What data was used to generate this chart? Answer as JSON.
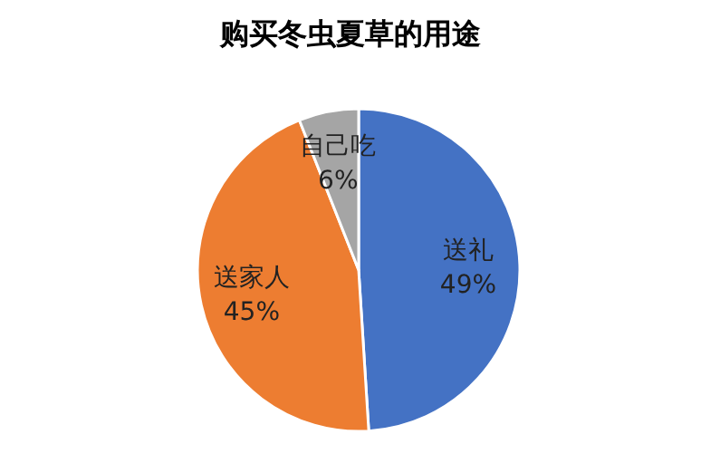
{
  "chart_data": {
    "type": "pie",
    "title": "购买冬虫夏草的用途",
    "categories": [
      "送礼",
      "送家人",
      "自己吃"
    ],
    "values": [
      49,
      45,
      6
    ],
    "colors": [
      "#4472c4",
      "#ed7d31",
      "#a5a5a5"
    ],
    "value_labels": [
      "49%",
      "45%",
      "6%"
    ],
    "legend": false
  }
}
